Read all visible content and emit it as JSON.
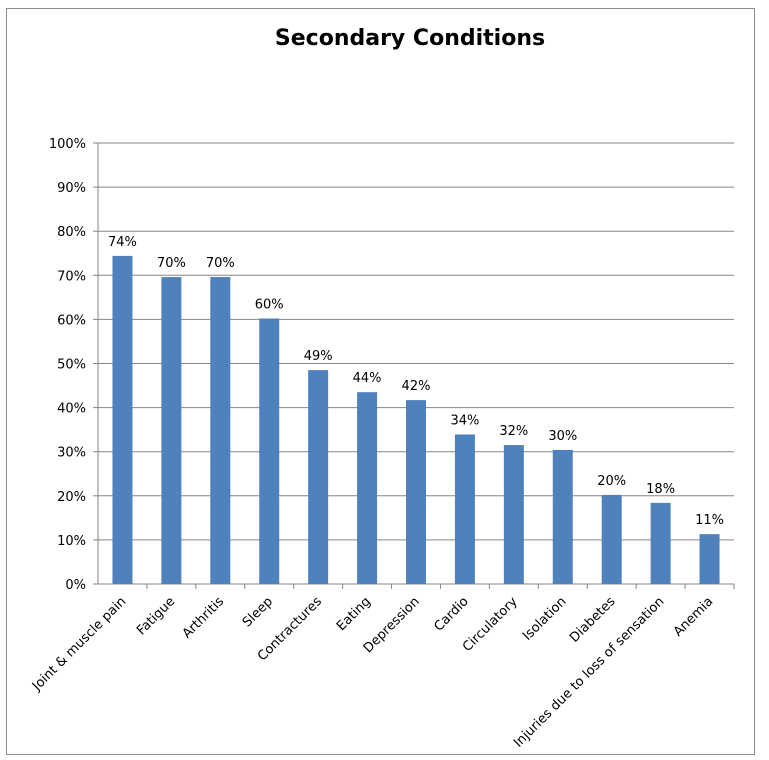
{
  "chart_data": {
    "type": "bar",
    "title": "Secondary Conditions",
    "xlabel": "",
    "ylabel": "",
    "ylim": [
      0,
      100
    ],
    "yticks": [
      "0%",
      "10%",
      "20%",
      "30%",
      "40%",
      "50%",
      "60%",
      "70%",
      "80%",
      "90%",
      "100%"
    ],
    "grid": true,
    "legend": "none",
    "bar_color": "#4f81bd",
    "categories": [
      "Joint & muscle pain",
      "Fatigue",
      "Arthritis",
      "Sleep",
      "Contractures",
      "Eating",
      "Depression",
      "Cardio",
      "Circulatory",
      "Isolation",
      "Diabetes",
      "Injuries due to loss of sensation",
      "Anemia"
    ],
    "values": [
      74.4,
      69.6,
      69.6,
      60.2,
      48.5,
      43.5,
      41.7,
      33.9,
      31.5,
      30.4,
      20.2,
      18.4,
      11.3
    ],
    "data_labels": [
      "74%",
      "70%",
      "70%",
      "60%",
      "49%",
      "44%",
      "42%",
      "34%",
      "32%",
      "30%",
      "20%",
      "18%",
      "11%"
    ]
  }
}
